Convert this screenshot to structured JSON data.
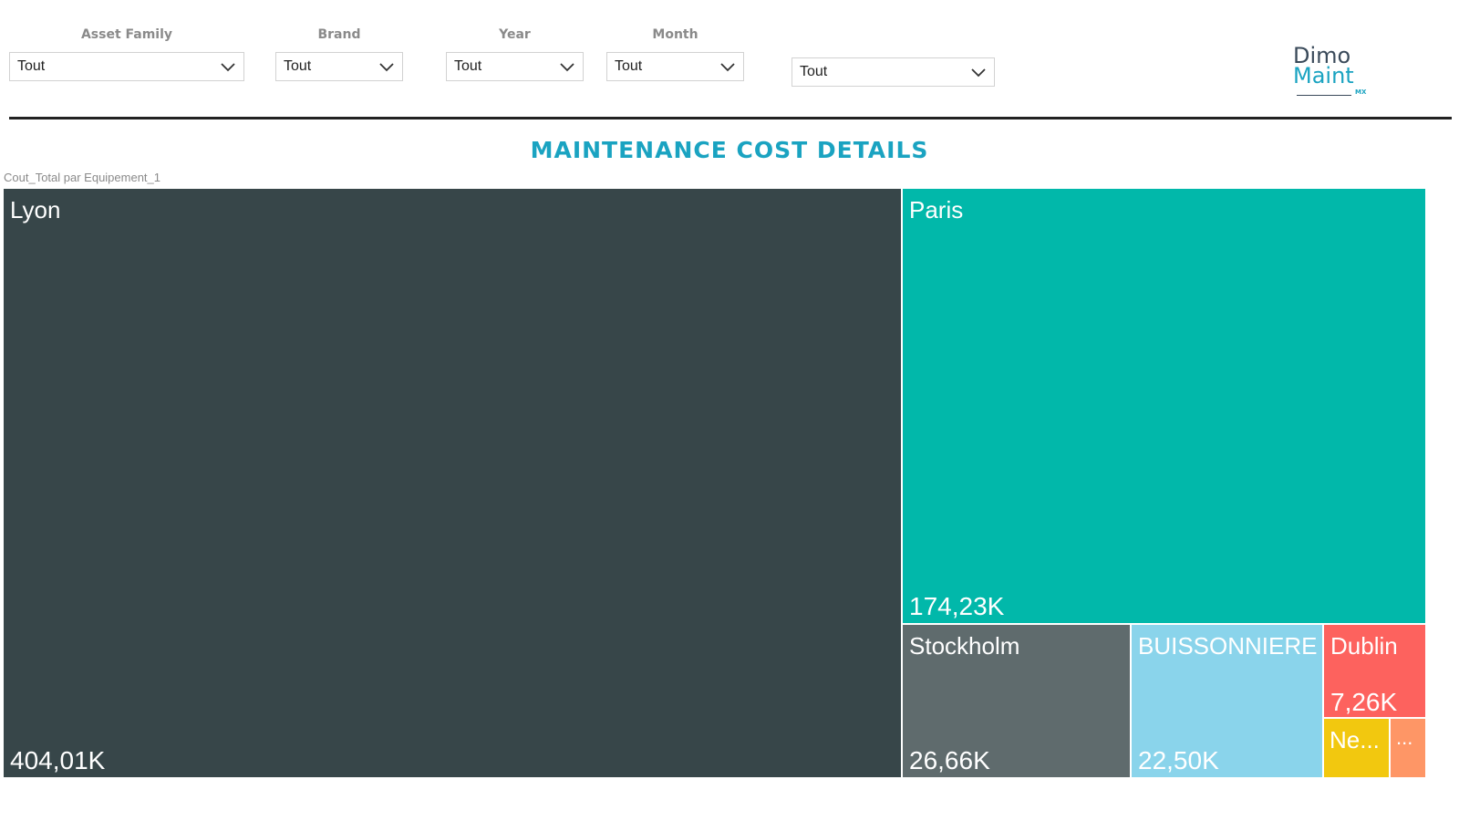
{
  "filters": [
    {
      "label": "Asset Family",
      "value": "Tout"
    },
    {
      "label": "Brand",
      "value": "Tout"
    },
    {
      "label": "Year",
      "value": "Tout"
    },
    {
      "label": "Month",
      "value": "Tout"
    },
    {
      "label": "",
      "value": "Tout"
    }
  ],
  "logo": {
    "line1": "Dimo",
    "line2": "Maint",
    "sub": "MX"
  },
  "page_title": "MAINTENANCE COST DETAILS",
  "colors": {
    "title": "#1aa3c1",
    "logo_primary": "#3a4a5a",
    "logo_accent": "#1aa3c1"
  },
  "chart_data": {
    "type": "treemap",
    "title": "Cout_Total par Equipement_1",
    "items": [
      {
        "name": "Lyon",
        "value_label": "404,01K",
        "value": 404.01,
        "color": "#374649"
      },
      {
        "name": "Paris",
        "value_label": "174,23K",
        "value": 174.23,
        "color": "#01b8aa"
      },
      {
        "name": "Stockholm",
        "value_label": "26,66K",
        "value": 26.66,
        "color": "#5f6b6d"
      },
      {
        "name": "BUISSONNIERE",
        "value_label": "22,50K",
        "value": 22.5,
        "color": "#8ad4eb"
      },
      {
        "name": "Dublin",
        "value_label": "7,26K",
        "value": 7.26,
        "color": "#fd625e"
      },
      {
        "name": "Ne...",
        "value_label": "",
        "color": "#f2c80f"
      },
      {
        "name": "...",
        "value_label": "",
        "color": "#fe9666"
      }
    ]
  }
}
